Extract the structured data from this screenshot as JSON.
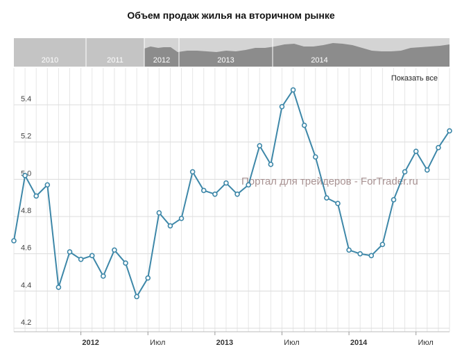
{
  "chart_data": {
    "type": "line",
    "title": "Объем продаж жилья на вторичном рынке",
    "xlabel": "",
    "ylabel": "",
    "ylim": [
      4.2,
      5.6
    ],
    "yticks": [
      "4.2",
      "4.4",
      "4.6",
      "4.8",
      "5.0",
      "5.2",
      "5.4"
    ],
    "x_range": [
      "2011-07",
      "2014-10"
    ],
    "x_ticks": [
      {
        "date": "2012-01",
        "label": "2012",
        "bold": true
      },
      {
        "date": "2012-07",
        "label": "Июл",
        "bold": false
      },
      {
        "date": "2013-01",
        "label": "2013",
        "bold": true
      },
      {
        "date": "2013-07",
        "label": "Июл",
        "bold": false
      },
      {
        "date": "2014-01",
        "label": "2014",
        "bold": true
      },
      {
        "date": "2014-07",
        "label": "Июл",
        "bold": false
      }
    ],
    "grid": true,
    "series": [
      {
        "name": "",
        "color": "#3d87a8",
        "points": [
          {
            "x": "2011-07",
            "y": 4.67
          },
          {
            "x": "2011-08",
            "y": 5.02
          },
          {
            "x": "2011-09",
            "y": 4.91
          },
          {
            "x": "2011-10",
            "y": 4.97
          },
          {
            "x": "2011-11",
            "y": 4.42
          },
          {
            "x": "2011-12",
            "y": 4.61
          },
          {
            "x": "2012-01",
            "y": 4.57
          },
          {
            "x": "2012-02",
            "y": 4.59
          },
          {
            "x": "2012-03",
            "y": 4.48
          },
          {
            "x": "2012-04",
            "y": 4.62
          },
          {
            "x": "2012-05",
            "y": 4.55
          },
          {
            "x": "2012-06",
            "y": 4.37
          },
          {
            "x": "2012-07",
            "y": 4.47
          },
          {
            "x": "2012-08",
            "y": 4.82
          },
          {
            "x": "2012-09",
            "y": 4.75
          },
          {
            "x": "2012-10",
            "y": 4.79
          },
          {
            "x": "2012-11",
            "y": 5.04
          },
          {
            "x": "2012-12",
            "y": 4.94
          },
          {
            "x": "2013-01",
            "y": 4.92
          },
          {
            "x": "2013-02",
            "y": 4.98
          },
          {
            "x": "2013-03",
            "y": 4.92
          },
          {
            "x": "2013-04",
            "y": 4.97
          },
          {
            "x": "2013-05",
            "y": 5.18
          },
          {
            "x": "2013-06",
            "y": 5.08
          },
          {
            "x": "2013-07",
            "y": 5.39
          },
          {
            "x": "2013-08",
            "y": 5.48
          },
          {
            "x": "2013-09",
            "y": 5.29
          },
          {
            "x": "2013-10",
            "y": 5.12
          },
          {
            "x": "2013-11",
            "y": 4.9
          },
          {
            "x": "2013-12",
            "y": 4.87
          },
          {
            "x": "2014-01",
            "y": 4.62
          },
          {
            "x": "2014-02",
            "y": 4.6
          },
          {
            "x": "2014-03",
            "y": 4.59
          },
          {
            "x": "2014-04",
            "y": 4.65
          },
          {
            "x": "2014-05",
            "y": 4.89
          },
          {
            "x": "2014-06",
            "y": 5.04
          },
          {
            "x": "2014-07",
            "y": 5.15
          },
          {
            "x": "2014-08",
            "y": 5.05
          },
          {
            "x": "2014-09",
            "y": 5.17
          },
          {
            "x": "2014-10",
            "y": 5.26
          }
        ]
      }
    ],
    "annotations": [
      {
        "text": "Портал для трейдеров - ForTrader.ru",
        "type": "watermark"
      }
    ]
  },
  "navigator": {
    "years": [
      "2010",
      "2011",
      "2012",
      "2013",
      "2014"
    ],
    "selected_range": [
      "2011-07",
      "2014-10"
    ]
  },
  "controls": {
    "show_all_label": "Показать все"
  },
  "colors": {
    "line": "#3d87a8",
    "grid": "#e6e6e6",
    "nav_unselected": "#c4c4c4",
    "nav_selected": "#8c8c8c",
    "nav_area": "#d4d4d4"
  }
}
